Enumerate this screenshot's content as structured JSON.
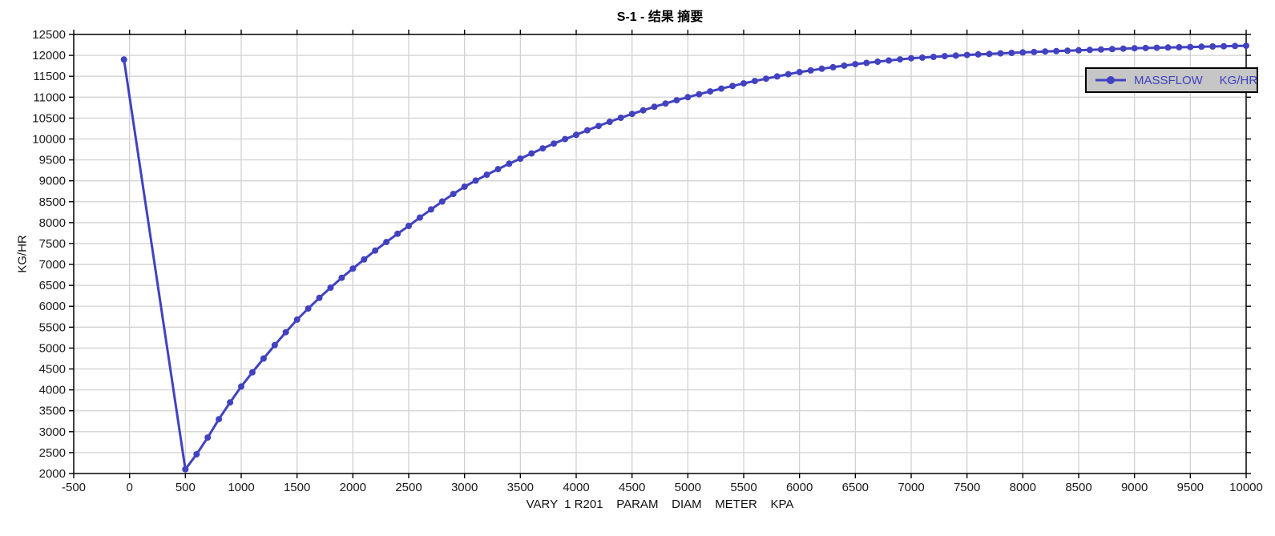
{
  "chart_data": {
    "type": "line",
    "title": "S-1 - 结果 摘要",
    "xlabel": "VARY  1 R201    PARAM    DIAM    METER    KPA",
    "ylabel": "KG/HR",
    "legend": {
      "label": "MASSFLOW     KG/HR",
      "position": "top-right"
    },
    "xlim": [
      -500,
      10000
    ],
    "ylim": [
      2000,
      12500
    ],
    "xticks": [
      -500,
      0,
      500,
      1000,
      1500,
      2000,
      2500,
      3000,
      3500,
      4000,
      4500,
      5000,
      5500,
      6000,
      6500,
      7000,
      7500,
      8000,
      8500,
      9000,
      9500,
      10000
    ],
    "yticks": [
      2000,
      2500,
      3000,
      3500,
      4000,
      4500,
      5000,
      5500,
      6000,
      6500,
      7000,
      7500,
      8000,
      8500,
      9000,
      9500,
      10000,
      10500,
      11000,
      11500,
      12000,
      12500
    ],
    "grid": true,
    "colors": {
      "series": "#4141c1",
      "grid": "#d2d2d2",
      "axis": "#000000",
      "text": "#1a1a1a",
      "legend_bg": "#c6c6c6"
    },
    "series": [
      {
        "name": "MASSFLOW KG/HR",
        "marker": "circle",
        "x": [
          -50,
          500,
          600,
          700,
          800,
          900,
          1000,
          1100,
          1200,
          1300,
          1400,
          1500,
          1600,
          1700,
          1800,
          1900,
          2000,
          2100,
          2200,
          2300,
          2400,
          2500,
          2600,
          2700,
          2800,
          2900,
          3000,
          3100,
          3200,
          3300,
          3400,
          3500,
          3600,
          3700,
          3800,
          3900,
          4000,
          4100,
          4200,
          4300,
          4400,
          4500,
          4600,
          4700,
          4800,
          4900,
          5000,
          5100,
          5200,
          5300,
          5400,
          5500,
          5600,
          5700,
          5800,
          5900,
          6000,
          6100,
          6200,
          6300,
          6400,
          6500,
          6600,
          6700,
          6800,
          6900,
          7000,
          7100,
          7200,
          7300,
          7400,
          7500,
          7600,
          7700,
          7800,
          7900,
          8000,
          8100,
          8200,
          8300,
          8400,
          8500,
          8600,
          8700,
          8800,
          8900,
          9000,
          9100,
          9200,
          9300,
          9400,
          9500,
          9600,
          9700,
          9800,
          9900,
          10000
        ],
        "y": [
          11900,
          2100,
          2460,
          2860,
          3300,
          3700,
          4080,
          4420,
          4750,
          5070,
          5380,
          5680,
          5945,
          6200,
          6445,
          6680,
          6900,
          7120,
          7332,
          7536,
          7732,
          7920,
          8120,
          8315,
          8505,
          8685,
          8860,
          9005,
          9145,
          9280,
          9410,
          9530,
          9655,
          9775,
          9890,
          9998,
          10100,
          10208,
          10312,
          10412,
          10508,
          10600,
          10686,
          10769,
          10849,
          10926,
          11000,
          11070,
          11138,
          11204,
          11268,
          11330,
          11387,
          11442,
          11496,
          11549,
          11600,
          11640,
          11679,
          11717,
          11754,
          11790,
          11820,
          11849,
          11877,
          11904,
          11930,
          11947,
          11964,
          11980,
          11995,
          12010,
          12023,
          12035,
          12047,
          12059,
          12070,
          12081,
          12091,
          12101,
          12111,
          12120,
          12130,
          12140,
          12150,
          12160,
          12170,
          12176,
          12182,
          12188,
          12194,
          12200,
          12206,
          12212,
          12218,
          12224,
          12230
        ]
      }
    ]
  }
}
